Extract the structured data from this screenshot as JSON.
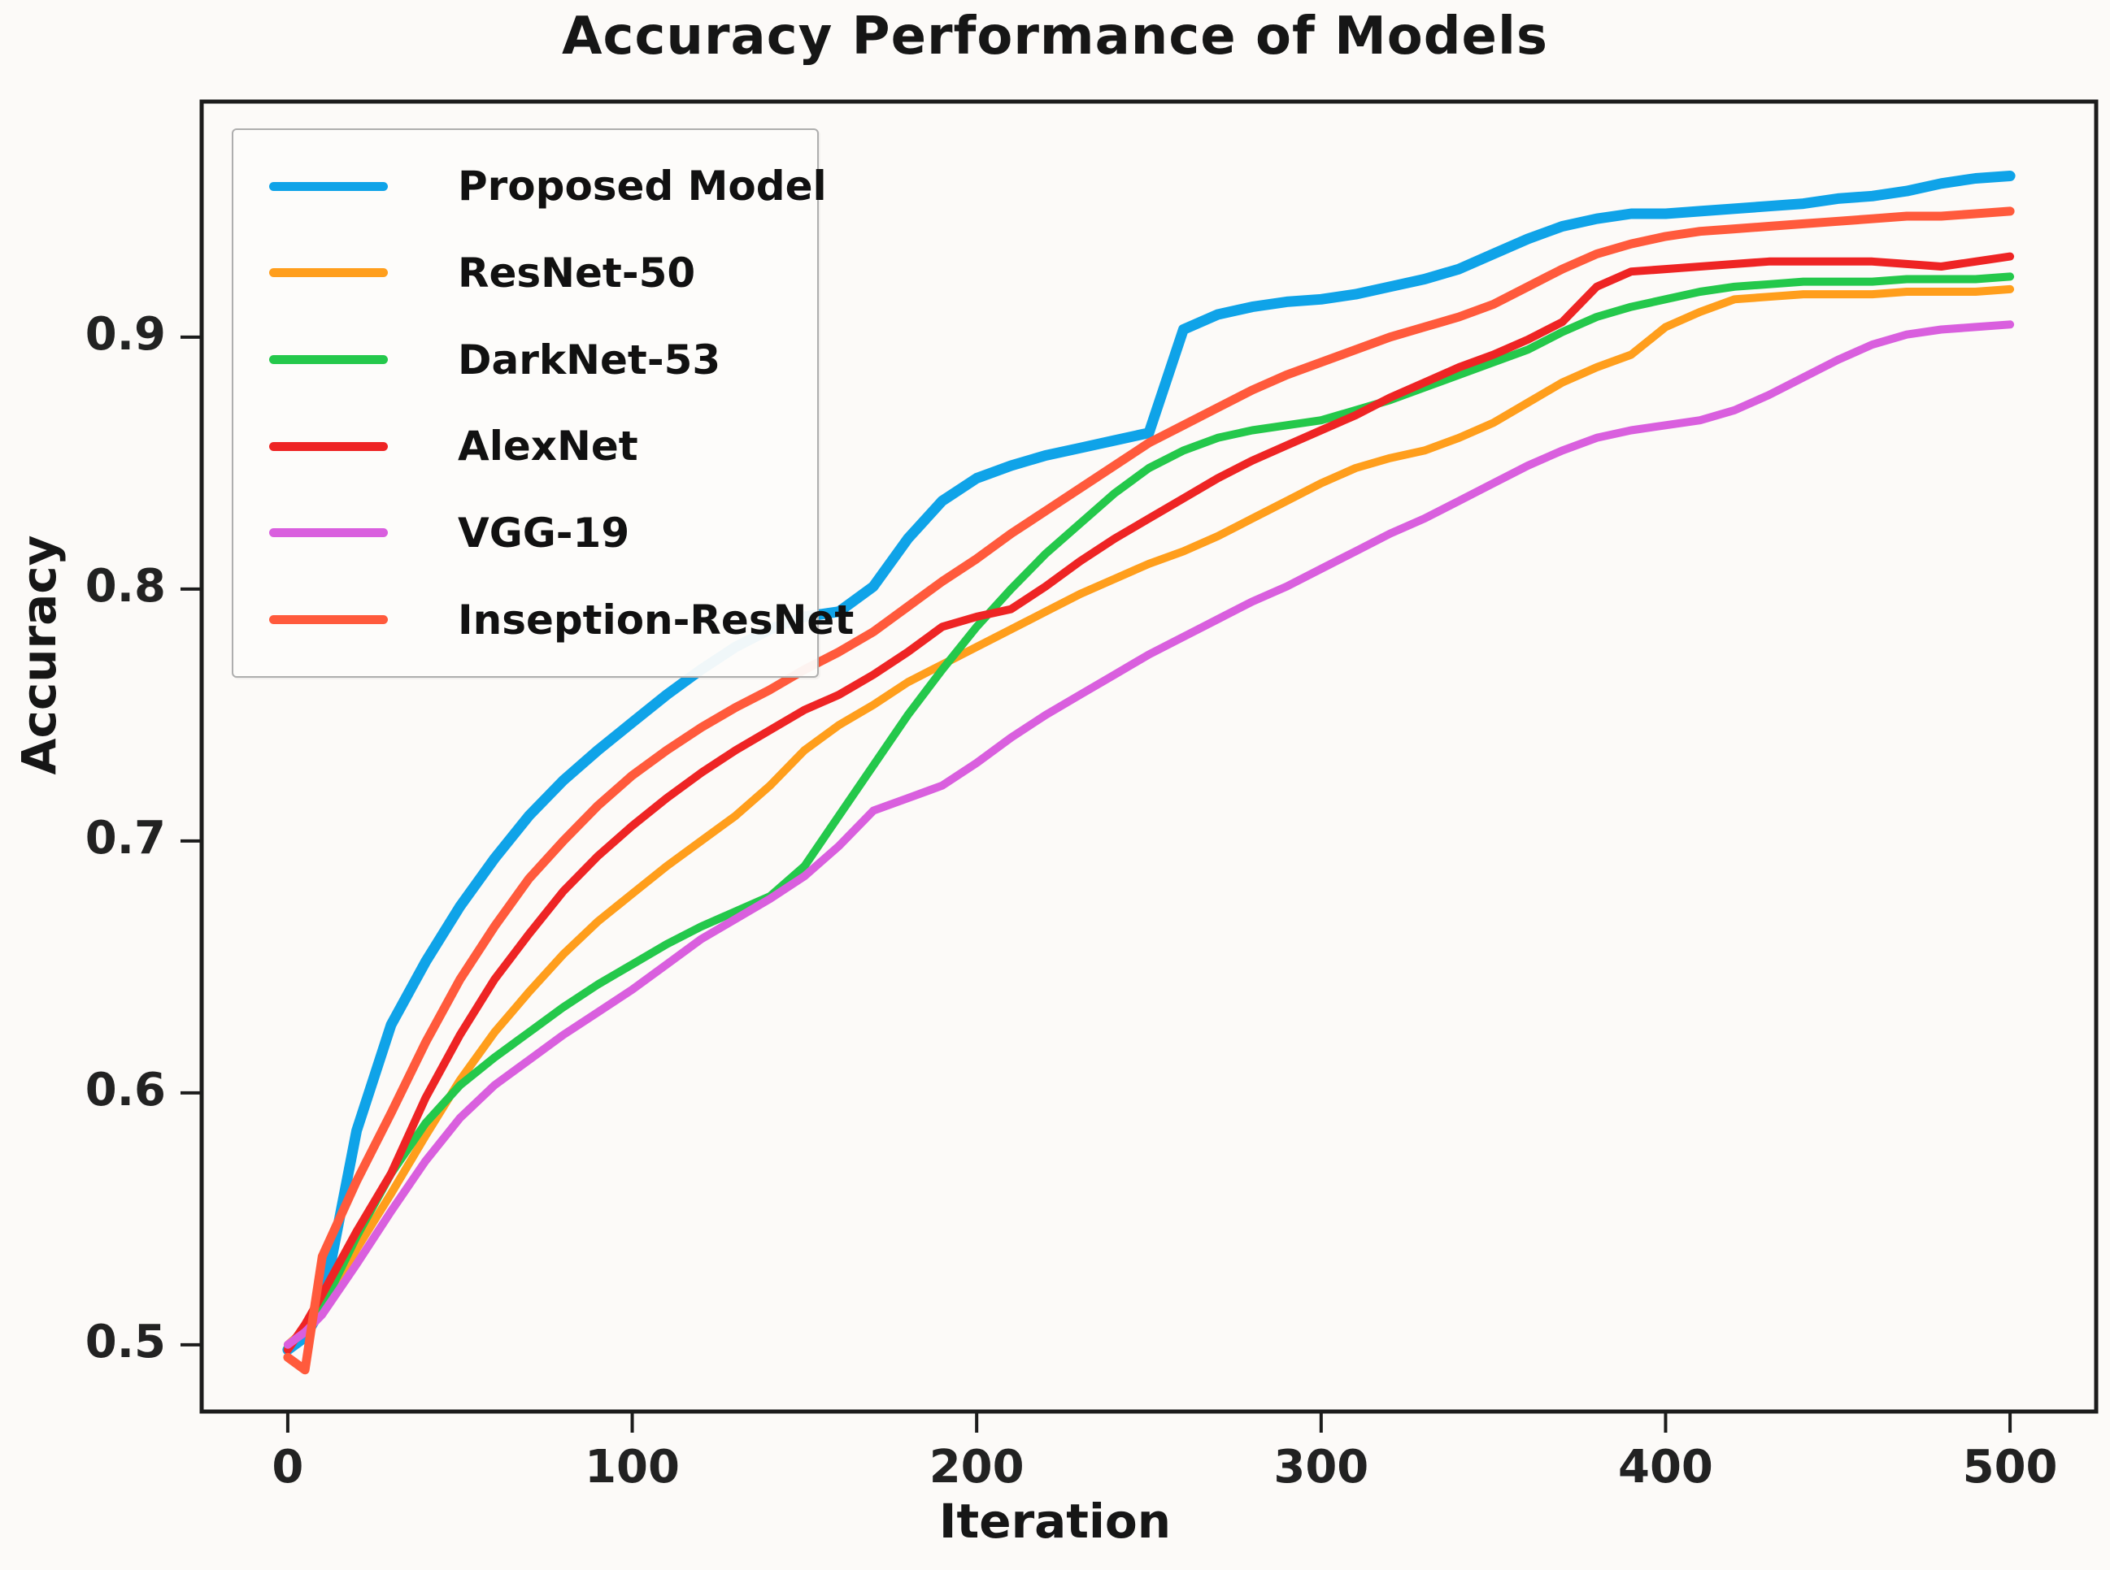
{
  "title": "Accuracy Performance of Models",
  "axes": {
    "xlabel": "Iteration",
    "ylabel": "Accuracy",
    "x_ticks": [
      0,
      100,
      200,
      300,
      400,
      500
    ],
    "y_ticks": [
      0.5,
      0.6,
      0.7,
      0.8,
      0.9
    ],
    "xlim": [
      -25,
      525
    ],
    "ylim": [
      0.4735,
      0.9935
    ],
    "grid": false,
    "spine_color": "#1c1c1c",
    "background": "#fcfaf8"
  },
  "legend": {
    "position": "upper-left",
    "entries": [
      {
        "label": "Proposed Model",
        "color": "#0fa3e8"
      },
      {
        "label": "ResNet-50",
        "color": "#ff9e1c"
      },
      {
        "label": "DarkNet-53",
        "color": "#24c84b"
      },
      {
        "label": "AlexNet",
        "color": "#ee2424"
      },
      {
        "label": "VGG-19",
        "color": "#d95fde"
      },
      {
        "label": "Inseption-ResNet",
        "color": "#ff5a3c"
      }
    ]
  },
  "chart_data": {
    "type": "line",
    "title": "Accuracy Performance of Models",
    "xlabel": "Iteration",
    "ylabel": "Accuracy",
    "xlim": [
      -25,
      525
    ],
    "ylim": [
      0.4735,
      0.9935
    ],
    "legend_position": "upper-left",
    "grid": false,
    "x": [
      0,
      5,
      10,
      20,
      30,
      40,
      50,
      60,
      70,
      80,
      90,
      100,
      110,
      120,
      130,
      140,
      150,
      160,
      170,
      180,
      190,
      200,
      210,
      220,
      230,
      240,
      250,
      260,
      270,
      280,
      290,
      300,
      310,
      320,
      330,
      340,
      350,
      360,
      370,
      380,
      390,
      400,
      410,
      420,
      430,
      440,
      450,
      460,
      470,
      480,
      490,
      500
    ],
    "series": [
      {
        "name": "Proposed Model",
        "color": "#0fa3e8",
        "width": 13,
        "values": [
          0.498,
          0.503,
          0.515,
          0.585,
          0.627,
          0.652,
          0.674,
          0.693,
          0.71,
          0.724,
          0.736,
          0.747,
          0.758,
          0.768,
          0.777,
          0.784,
          0.789,
          0.791,
          0.801,
          0.82,
          0.835,
          0.844,
          0.849,
          0.853,
          0.856,
          0.859,
          0.862,
          0.903,
          0.909,
          0.912,
          0.914,
          0.915,
          0.917,
          0.92,
          0.923,
          0.927,
          0.933,
          0.939,
          0.944,
          0.947,
          0.949,
          0.949,
          0.95,
          0.951,
          0.952,
          0.953,
          0.955,
          0.956,
          0.958,
          0.961,
          0.963,
          0.964
        ]
      },
      {
        "name": "ResNet-50",
        "color": "#ff9e1c",
        "width": 10,
        "values": [
          0.5,
          0.506,
          0.514,
          0.538,
          0.56,
          0.583,
          0.605,
          0.624,
          0.64,
          0.655,
          0.668,
          0.679,
          0.69,
          0.7,
          0.71,
          0.722,
          0.736,
          0.746,
          0.754,
          0.763,
          0.77,
          0.777,
          0.784,
          0.791,
          0.798,
          0.804,
          0.81,
          0.815,
          0.821,
          0.828,
          0.835,
          0.842,
          0.848,
          0.852,
          0.855,
          0.86,
          0.866,
          0.874,
          0.882,
          0.888,
          0.893,
          0.904,
          0.91,
          0.915,
          0.916,
          0.917,
          0.917,
          0.917,
          0.918,
          0.918,
          0.918,
          0.919
        ]
      },
      {
        "name": "DarkNet-53",
        "color": "#24c84b",
        "width": 10,
        "values": [
          0.499,
          0.506,
          0.515,
          0.543,
          0.568,
          0.588,
          0.603,
          0.614,
          0.624,
          0.634,
          0.643,
          0.651,
          0.659,
          0.666,
          0.672,
          0.678,
          0.69,
          0.71,
          0.73,
          0.75,
          0.768,
          0.785,
          0.8,
          0.814,
          0.826,
          0.838,
          0.848,
          0.855,
          0.86,
          0.863,
          0.865,
          0.867,
          0.871,
          0.875,
          0.88,
          0.885,
          0.89,
          0.895,
          0.902,
          0.908,
          0.912,
          0.915,
          0.918,
          0.92,
          0.921,
          0.922,
          0.922,
          0.922,
          0.923,
          0.923,
          0.923,
          0.924
        ]
      },
      {
        "name": "AlexNet",
        "color": "#ee2424",
        "width": 10,
        "values": [
          0.498,
          0.508,
          0.52,
          0.545,
          0.568,
          0.598,
          0.623,
          0.645,
          0.663,
          0.68,
          0.694,
          0.706,
          0.717,
          0.727,
          0.736,
          0.744,
          0.752,
          0.758,
          0.766,
          0.775,
          0.785,
          0.789,
          0.792,
          0.801,
          0.811,
          0.82,
          0.828,
          0.836,
          0.844,
          0.851,
          0.857,
          0.863,
          0.869,
          0.876,
          0.882,
          0.888,
          0.893,
          0.899,
          0.906,
          0.92,
          0.926,
          0.927,
          0.928,
          0.929,
          0.93,
          0.93,
          0.93,
          0.93,
          0.929,
          0.928,
          0.93,
          0.932
        ]
      },
      {
        "name": "VGG-19",
        "color": "#d95fde",
        "width": 10,
        "values": [
          0.5,
          0.505,
          0.512,
          0.532,
          0.553,
          0.573,
          0.59,
          0.603,
          0.613,
          0.623,
          0.632,
          0.641,
          0.651,
          0.661,
          0.669,
          0.677,
          0.686,
          0.698,
          0.712,
          0.717,
          0.722,
          0.731,
          0.741,
          0.75,
          0.758,
          0.766,
          0.774,
          0.781,
          0.788,
          0.795,
          0.801,
          0.808,
          0.815,
          0.822,
          0.828,
          0.835,
          0.842,
          0.849,
          0.855,
          0.86,
          0.863,
          0.865,
          0.867,
          0.871,
          0.877,
          0.884,
          0.891,
          0.897,
          0.901,
          0.903,
          0.904,
          0.905
        ]
      },
      {
        "name": "Inseption-ResNet",
        "color": "#ff5a3c",
        "width": 11,
        "values": [
          0.495,
          0.49,
          0.535,
          0.565,
          0.592,
          0.62,
          0.645,
          0.666,
          0.685,
          0.7,
          0.714,
          0.726,
          0.736,
          0.745,
          0.753,
          0.76,
          0.768,
          0.775,
          0.783,
          0.793,
          0.803,
          0.812,
          0.822,
          0.831,
          0.84,
          0.849,
          0.858,
          0.865,
          0.872,
          0.879,
          0.885,
          0.89,
          0.895,
          0.9,
          0.904,
          0.908,
          0.913,
          0.92,
          0.927,
          0.933,
          0.937,
          0.94,
          0.942,
          0.943,
          0.944,
          0.945,
          0.946,
          0.947,
          0.948,
          0.948,
          0.949,
          0.95
        ]
      }
    ]
  }
}
